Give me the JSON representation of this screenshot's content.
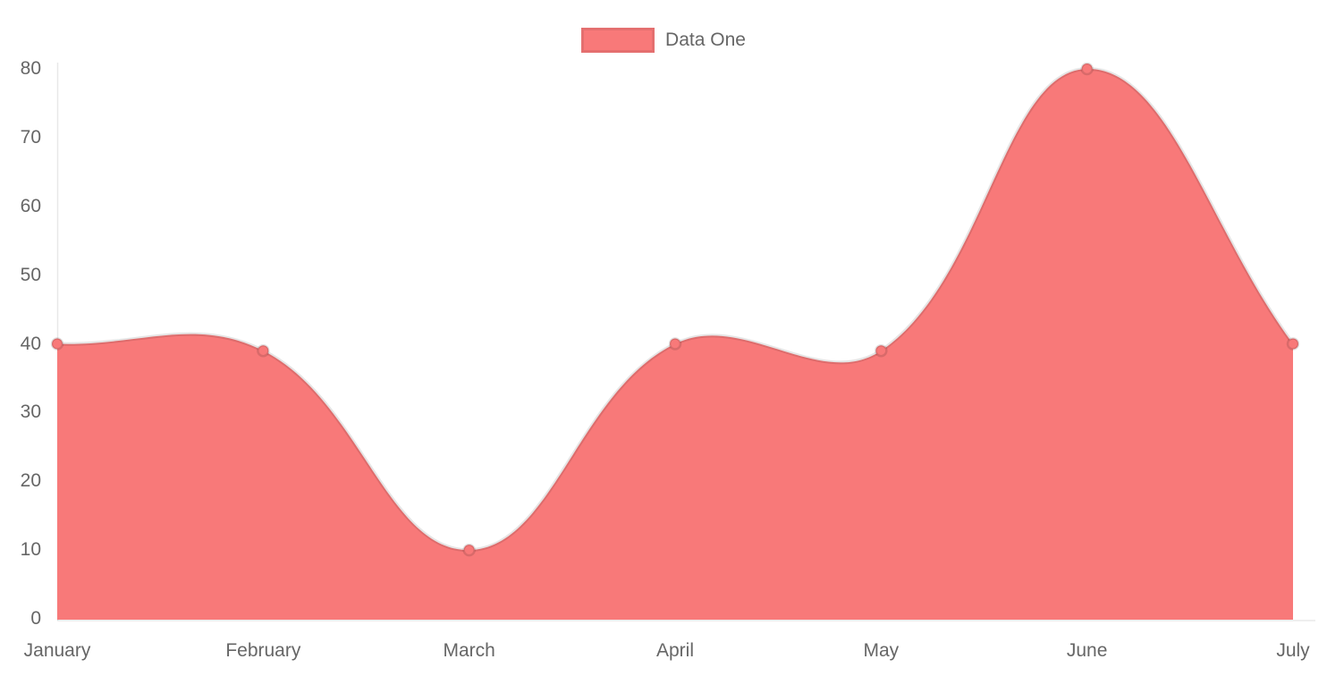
{
  "chart_data": {
    "type": "area",
    "title": "",
    "categories": [
      "January",
      "February",
      "March",
      "April",
      "May",
      "June",
      "July"
    ],
    "series": [
      {
        "name": "Data One",
        "values": [
          40,
          39,
          10,
          40,
          39,
          80,
          40
        ]
      }
    ],
    "xlabel": "",
    "ylabel": "",
    "ylim": [
      0,
      80
    ],
    "yticks": [
      0,
      10,
      20,
      30,
      40,
      50,
      60,
      70,
      80
    ],
    "grid": false,
    "legend_position": "top",
    "line_tension": 0.4,
    "colors": {
      "area_fill": "#f87979",
      "line_stroke": "rgba(0,0,0,0.10)",
      "point_fill": "#f87979",
      "point_border": "rgba(0,0,0,0.12)",
      "axis_line": "rgba(0,0,0,0.09)",
      "label_text": "#666666"
    }
  },
  "legend": {
    "label": "Data One"
  }
}
